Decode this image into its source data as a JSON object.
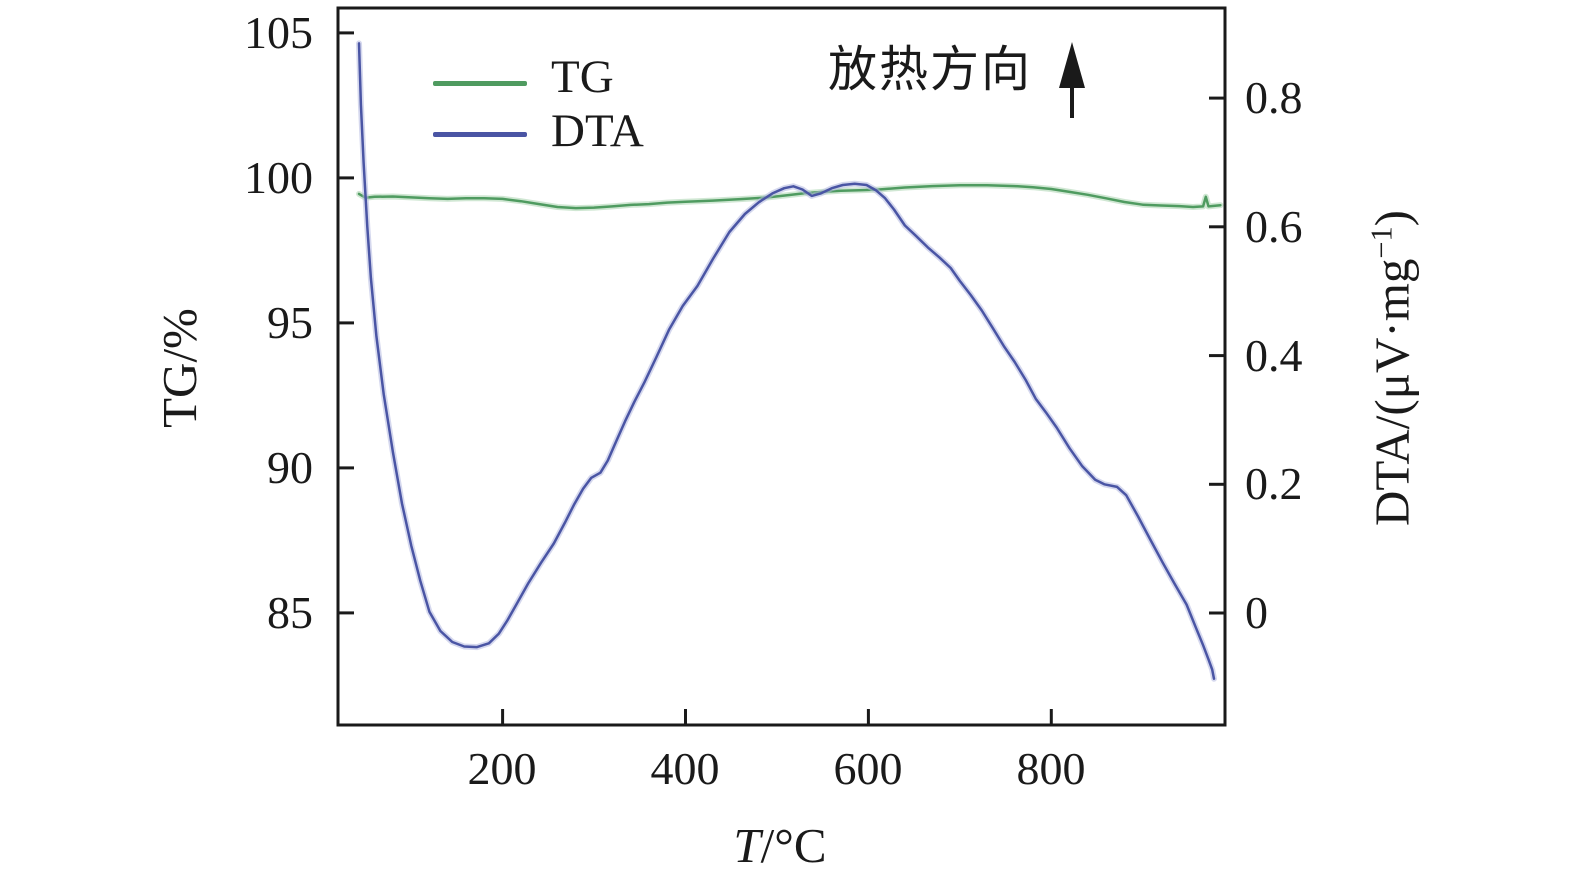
{
  "figure": {
    "background": "#ffffff",
    "text_color": "#1a1a1a"
  },
  "legend": {
    "items": [
      {
        "label": "TG",
        "color": "#4f9b60"
      },
      {
        "label": "DTA",
        "color": "#4a55a4"
      }
    ]
  },
  "annotation": {
    "text": "放热方向",
    "arrow": "up-arrow"
  },
  "axes": {
    "x": {
      "title_var": "T",
      "title_unit": "/°C",
      "ticks": [
        "200",
        "400",
        "600",
        "800"
      ]
    },
    "y_left": {
      "title": "TG/%",
      "ticks": [
        "105",
        "100",
        "95",
        "90",
        "85"
      ]
    },
    "y_right": {
      "title_prefix": "DTA/(μV·mg",
      "title_sup": "−1",
      "title_suffix": ")",
      "ticks": [
        "0.8",
        "0.6",
        "0.4",
        "0.2",
        "0"
      ]
    }
  },
  "chart_data": {
    "type": "line",
    "title": "",
    "xlabel": "T/°C",
    "ylabel_left": "TG/%",
    "ylabel_right": "DTA/(μV·mg−1)",
    "grid": false,
    "legend_position": "inside-top-left",
    "annotation": "放热方向 (exothermic direction, arrow up)",
    "x_range": [
      20,
      990
    ],
    "x_ticks": [
      200,
      400,
      600,
      800
    ],
    "y_left_range": [
      81.14,
      105.86
    ],
    "y_left_ticks": [
      105,
      100,
      95,
      90,
      85
    ],
    "y_right_range": [
      -0.174,
      0.94
    ],
    "y_right_ticks": [
      0.8,
      0.6,
      0.4,
      0.2,
      0
    ],
    "series": [
      {
        "name": "TG",
        "axis": "left",
        "color": "#4f9b60",
        "halo": "#a9d4af",
        "points": [
          [
            43,
            99.45
          ],
          [
            50,
            99.32
          ],
          [
            60,
            99.35
          ],
          [
            80,
            99.36
          ],
          [
            100,
            99.33
          ],
          [
            120,
            99.3
          ],
          [
            140,
            99.28
          ],
          [
            160,
            99.3
          ],
          [
            180,
            99.3
          ],
          [
            200,
            99.28
          ],
          [
            220,
            99.2
          ],
          [
            240,
            99.1
          ],
          [
            260,
            99.0
          ],
          [
            280,
            98.96
          ],
          [
            300,
            98.98
          ],
          [
            320,
            99.02
          ],
          [
            340,
            99.07
          ],
          [
            360,
            99.1
          ],
          [
            380,
            99.15
          ],
          [
            400,
            99.18
          ],
          [
            430,
            99.22
          ],
          [
            460,
            99.27
          ],
          [
            490,
            99.33
          ],
          [
            510,
            99.4
          ],
          [
            530,
            99.47
          ],
          [
            550,
            99.52
          ],
          [
            570,
            99.56
          ],
          [
            590,
            99.58
          ],
          [
            610,
            99.6
          ],
          [
            640,
            99.67
          ],
          [
            670,
            99.72
          ],
          [
            700,
            99.75
          ],
          [
            730,
            99.75
          ],
          [
            760,
            99.72
          ],
          [
            780,
            99.68
          ],
          [
            800,
            99.62
          ],
          [
            820,
            99.52
          ],
          [
            840,
            99.42
          ],
          [
            860,
            99.3
          ],
          [
            880,
            99.17
          ],
          [
            900,
            99.08
          ],
          [
            920,
            99.05
          ],
          [
            940,
            99.03
          ],
          [
            955,
            99.0
          ],
          [
            966,
            99.02
          ],
          [
            969,
            99.35
          ],
          [
            972,
            99.02
          ],
          [
            985,
            99.06
          ]
        ]
      },
      {
        "name": "DTA",
        "axis": "right",
        "color": "#4a55a4",
        "halo": "#b2b8e0",
        "points": [
          [
            43,
            0.885
          ],
          [
            45,
            0.79
          ],
          [
            48,
            0.7
          ],
          [
            52,
            0.6
          ],
          [
            56,
            0.52
          ],
          [
            62,
            0.43
          ],
          [
            70,
            0.34
          ],
          [
            80,
            0.25
          ],
          [
            90,
            0.17
          ],
          [
            100,
            0.105
          ],
          [
            110,
            0.05
          ],
          [
            120,
            0.002
          ],
          [
            132,
            -0.028
          ],
          [
            145,
            -0.045
          ],
          [
            158,
            -0.052
          ],
          [
            172,
            -0.053
          ],
          [
            185,
            -0.047
          ],
          [
            196,
            -0.032
          ],
          [
            205,
            -0.012
          ],
          [
            215,
            0.013
          ],
          [
            228,
            0.046
          ],
          [
            242,
            0.078
          ],
          [
            256,
            0.108
          ],
          [
            268,
            0.14
          ],
          [
            278,
            0.168
          ],
          [
            288,
            0.193
          ],
          [
            297,
            0.21
          ],
          [
            307,
            0.218
          ],
          [
            315,
            0.237
          ],
          [
            324,
            0.266
          ],
          [
            334,
            0.298
          ],
          [
            344,
            0.328
          ],
          [
            355,
            0.358
          ],
          [
            368,
            0.397
          ],
          [
            382,
            0.44
          ],
          [
            397,
            0.477
          ],
          [
            413,
            0.508
          ],
          [
            430,
            0.55
          ],
          [
            448,
            0.592
          ],
          [
            465,
            0.62
          ],
          [
            480,
            0.638
          ],
          [
            495,
            0.652
          ],
          [
            508,
            0.66
          ],
          [
            518,
            0.663
          ],
          [
            528,
            0.658
          ],
          [
            538,
            0.648
          ],
          [
            548,
            0.652
          ],
          [
            560,
            0.66
          ],
          [
            572,
            0.665
          ],
          [
            585,
            0.667
          ],
          [
            598,
            0.665
          ],
          [
            608,
            0.657
          ],
          [
            618,
            0.645
          ],
          [
            628,
            0.627
          ],
          [
            640,
            0.602
          ],
          [
            652,
            0.586
          ],
          [
            665,
            0.568
          ],
          [
            678,
            0.552
          ],
          [
            690,
            0.536
          ],
          [
            700,
            0.516
          ],
          [
            712,
            0.494
          ],
          [
            724,
            0.47
          ],
          [
            736,
            0.443
          ],
          [
            748,
            0.415
          ],
          [
            760,
            0.39
          ],
          [
            772,
            0.362
          ],
          [
            783,
            0.333
          ],
          [
            794,
            0.312
          ],
          [
            806,
            0.288
          ],
          [
            820,
            0.256
          ],
          [
            834,
            0.228
          ],
          [
            848,
            0.207
          ],
          [
            858,
            0.2
          ],
          [
            872,
            0.196
          ],
          [
            882,
            0.183
          ],
          [
            895,
            0.15
          ],
          [
            908,
            0.115
          ],
          [
            922,
            0.078
          ],
          [
            935,
            0.045
          ],
          [
            948,
            0.013
          ],
          [
            958,
            -0.022
          ],
          [
            966,
            -0.05
          ],
          [
            972,
            -0.072
          ],
          [
            976,
            -0.088
          ],
          [
            978,
            -0.102
          ]
        ]
      }
    ]
  }
}
